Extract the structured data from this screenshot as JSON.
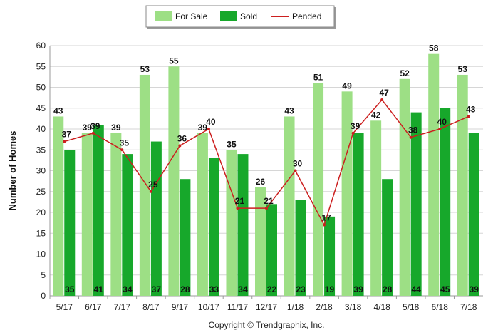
{
  "chart_data": {
    "type": "bar",
    "categories": [
      "5/17",
      "6/17",
      "7/17",
      "8/17",
      "9/17",
      "10/17",
      "11/17",
      "12/17",
      "1/18",
      "2/18",
      "3/18",
      "4/18",
      "5/18",
      "6/18",
      "7/18"
    ],
    "series": [
      {
        "name": "For Sale",
        "type": "bar",
        "color": "#9ddf85",
        "values": [
          43,
          39,
          39,
          53,
          55,
          39,
          35,
          26,
          43,
          51,
          49,
          42,
          52,
          58,
          53
        ]
      },
      {
        "name": "Sold",
        "type": "bar",
        "color": "#17a82b",
        "values": [
          35,
          41,
          34,
          37,
          28,
          33,
          34,
          22,
          23,
          19,
          39,
          28,
          44,
          45,
          39
        ]
      },
      {
        "name": "Pended",
        "type": "line",
        "color": "#cc1f1f",
        "values": [
          37,
          39,
          35,
          25,
          36,
          40,
          21,
          21,
          30,
          17,
          39,
          47,
          38,
          40,
          43
        ]
      }
    ],
    "ylabel": "Number of Homes",
    "xlabel": "",
    "ylim": [
      0,
      60
    ],
    "yticks": [
      0,
      5,
      10,
      15,
      20,
      25,
      30,
      35,
      40,
      45,
      50,
      55,
      60
    ],
    "grid": true,
    "legend_position": "top-center",
    "footer": "Copyright © Trendgraphix, Inc."
  }
}
